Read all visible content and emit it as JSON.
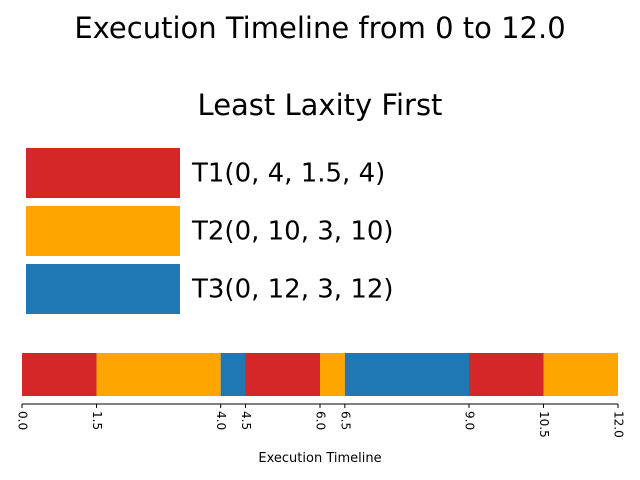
{
  "chart_data": {
    "type": "bar",
    "subtype": "gantt-timeline",
    "title_line1": "Execution Timeline from 0 to 12.0",
    "title_line2": "Least Laxity First",
    "xlabel": "Execution Timeline",
    "xlim": [
      0,
      12.0
    ],
    "tick_labels": [
      "0.0",
      "1.5",
      "4.0",
      "4.5",
      "6.0",
      "6.5",
      "9.0",
      "10.5",
      "12.0"
    ],
    "ticks": [
      0.0,
      1.5,
      4.0,
      4.5,
      6.0,
      6.5,
      9.0,
      10.5,
      12.0
    ],
    "legend_position": "upper-left",
    "series": [
      {
        "name": "T1(0, 4, 1.5, 4)",
        "task": "T1",
        "color": "#d62728"
      },
      {
        "name": "T2(0, 10, 3, 10)",
        "task": "T2",
        "color": "#ffa500"
      },
      {
        "name": "T3(0, 12, 3, 12)",
        "task": "T3",
        "color": "#1f77b4"
      }
    ],
    "segments": [
      {
        "task": "T1",
        "start": 0.0,
        "end": 1.5
      },
      {
        "task": "T2",
        "start": 1.5,
        "end": 4.0
      },
      {
        "task": "T3",
        "start": 4.0,
        "end": 4.5
      },
      {
        "task": "T1",
        "start": 4.5,
        "end": 6.0
      },
      {
        "task": "T2",
        "start": 6.0,
        "end": 6.5
      },
      {
        "task": "T3",
        "start": 6.5,
        "end": 9.0
      },
      {
        "task": "T1",
        "start": 9.0,
        "end": 10.5
      },
      {
        "task": "T2",
        "start": 10.5,
        "end": 12.0
      }
    ]
  }
}
